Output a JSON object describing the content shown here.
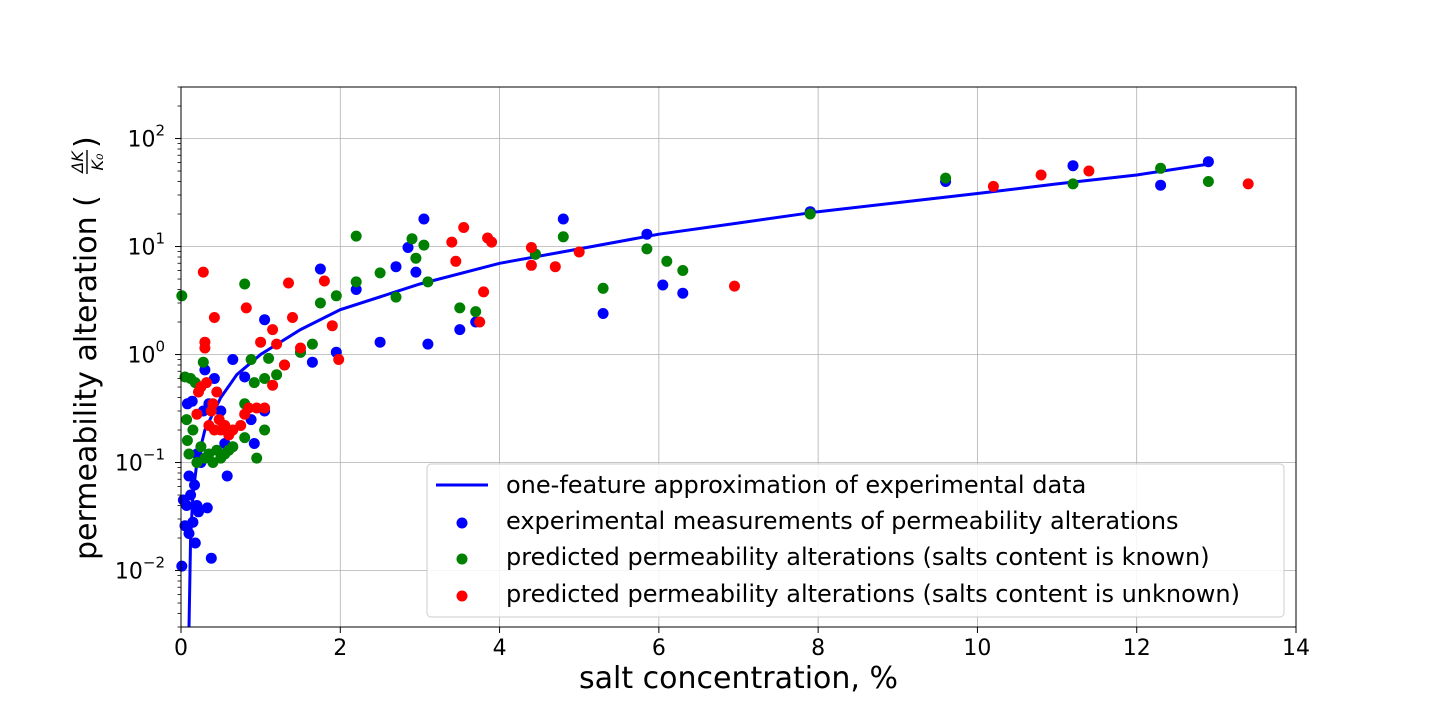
{
  "chart_data": {
    "type": "scatter",
    "title": "",
    "xlabel": "salt concentration, %",
    "ylabel": "permeability alteration (ΔK/K₀)",
    "ylabel_text": "permeability alteration (",
    "ylabel_frac_num": "ΔK",
    "ylabel_frac_den": "K₀",
    "ylabel_close": ")",
    "xscale": "linear",
    "yscale": "log",
    "xlim": [
      0,
      14
    ],
    "ylim": [
      0.003,
      300
    ],
    "grid": true,
    "legend_position": "lower-right",
    "x_ticks": [
      0,
      2,
      4,
      6,
      8,
      10,
      12,
      14
    ],
    "x_tick_labels": [
      "0",
      "2",
      "4",
      "6",
      "8",
      "10",
      "12",
      "14"
    ],
    "y_ticks": [
      0.01,
      0.1,
      1,
      10,
      100
    ],
    "y_tick_labels": [
      {
        "base": "10",
        "exp": "−2"
      },
      {
        "base": "10",
        "exp": "−1"
      },
      {
        "base": "10",
        "exp": "0"
      },
      {
        "base": "10",
        "exp": "1"
      },
      {
        "base": "10",
        "exp": "2"
      }
    ],
    "fit": {
      "name": "one-feature approximation of experimental data",
      "color": "#0000ff",
      "points": [
        [
          0.1,
          0.003
        ],
        [
          0.12,
          0.02
        ],
        [
          0.15,
          0.05
        ],
        [
          0.2,
          0.1
        ],
        [
          0.3,
          0.2
        ],
        [
          0.5,
          0.4
        ],
        [
          0.7,
          0.65
        ],
        [
          1.0,
          1.0
        ],
        [
          1.5,
          1.7
        ],
        [
          2.0,
          2.6
        ],
        [
          3.0,
          4.5
        ],
        [
          4.0,
          7.0
        ],
        [
          5.0,
          9.5
        ],
        [
          6.0,
          13.0
        ],
        [
          7.0,
          16.5
        ],
        [
          8.0,
          21.0
        ],
        [
          9.0,
          25.5
        ],
        [
          10.0,
          31.0
        ],
        [
          11.0,
          38.0
        ],
        [
          12.0,
          46.0
        ],
        [
          12.9,
          58.0
        ]
      ]
    },
    "series": [
      {
        "name": "experimental measurements of permeability alterations",
        "color": "#0000ff",
        "points": [
          [
            0.01,
            0.011
          ],
          [
            0.03,
            0.045
          ],
          [
            0.05,
            0.026
          ],
          [
            0.07,
            0.04
          ],
          [
            0.08,
            0.35
          ],
          [
            0.1,
            0.075
          ],
          [
            0.1,
            0.022
          ],
          [
            0.12,
            0.05
          ],
          [
            0.14,
            0.37
          ],
          [
            0.15,
            0.028
          ],
          [
            0.17,
            0.062
          ],
          [
            0.18,
            0.018
          ],
          [
            0.2,
            0.04
          ],
          [
            0.2,
            0.12
          ],
          [
            0.22,
            0.035
          ],
          [
            0.25,
            0.1
          ],
          [
            0.28,
            0.3
          ],
          [
            0.3,
            0.72
          ],
          [
            0.33,
            0.038
          ],
          [
            0.35,
            0.35
          ],
          [
            0.38,
            0.013
          ],
          [
            0.42,
            0.6
          ],
          [
            0.5,
            0.3
          ],
          [
            0.55,
            0.15
          ],
          [
            0.58,
            0.075
          ],
          [
            0.65,
            0.9
          ],
          [
            0.8,
            0.62
          ],
          [
            0.88,
            0.25
          ],
          [
            0.92,
            0.15
          ],
          [
            1.05,
            0.3
          ],
          [
            1.05,
            2.1
          ],
          [
            1.5,
            1.05
          ],
          [
            1.65,
            0.85
          ],
          [
            1.75,
            6.2
          ],
          [
            1.95,
            1.05
          ],
          [
            2.2,
            4.0
          ],
          [
            2.5,
            1.3
          ],
          [
            2.7,
            6.5
          ],
          [
            2.85,
            9.8
          ],
          [
            2.95,
            5.8
          ],
          [
            3.05,
            18.0
          ],
          [
            3.1,
            1.25
          ],
          [
            3.5,
            1.7
          ],
          [
            3.7,
            2.0
          ],
          [
            4.45,
            8.5
          ],
          [
            4.8,
            18.0
          ],
          [
            5.3,
            2.4
          ],
          [
            5.85,
            13.0
          ],
          [
            6.05,
            4.4
          ],
          [
            6.3,
            3.7
          ],
          [
            7.9,
            21.0
          ],
          [
            9.6,
            40.0
          ],
          [
            11.2,
            56.0
          ],
          [
            12.3,
            37.0
          ],
          [
            12.9,
            61.0
          ]
        ]
      },
      {
        "name": "predicted permeability alterations (salts content is known)",
        "color": "#008000",
        "points": [
          [
            0.01,
            3.5
          ],
          [
            0.05,
            0.62
          ],
          [
            0.07,
            0.25
          ],
          [
            0.08,
            0.16
          ],
          [
            0.1,
            0.12
          ],
          [
            0.12,
            0.6
          ],
          [
            0.15,
            0.2
          ],
          [
            0.18,
            0.55
          ],
          [
            0.2,
            0.1
          ],
          [
            0.25,
            0.14
          ],
          [
            0.28,
            0.85
          ],
          [
            0.3,
            0.11
          ],
          [
            0.35,
            0.12
          ],
          [
            0.4,
            0.1
          ],
          [
            0.45,
            0.13
          ],
          [
            0.5,
            0.11
          ],
          [
            0.55,
            0.12
          ],
          [
            0.6,
            0.13
          ],
          [
            0.65,
            0.14
          ],
          [
            0.8,
            4.5
          ],
          [
            0.8,
            0.35
          ],
          [
            0.8,
            0.17
          ],
          [
            0.88,
            0.9
          ],
          [
            0.92,
            0.55
          ],
          [
            0.95,
            0.11
          ],
          [
            1.05,
            0.2
          ],
          [
            1.05,
            0.6
          ],
          [
            1.1,
            0.92
          ],
          [
            1.2,
            0.65
          ],
          [
            1.3,
            0.8
          ],
          [
            1.5,
            1.05
          ],
          [
            1.65,
            1.25
          ],
          [
            1.75,
            3.0
          ],
          [
            1.95,
            3.5
          ],
          [
            2.2,
            12.5
          ],
          [
            2.2,
            4.7
          ],
          [
            2.5,
            5.7
          ],
          [
            2.7,
            3.4
          ],
          [
            2.9,
            11.8
          ],
          [
            2.95,
            7.8
          ],
          [
            3.05,
            10.3
          ],
          [
            3.1,
            4.7
          ],
          [
            3.5,
            2.7
          ],
          [
            3.7,
            2.5
          ],
          [
            4.45,
            8.5
          ],
          [
            4.8,
            12.3
          ],
          [
            5.3,
            4.1
          ],
          [
            5.85,
            9.5
          ],
          [
            6.1,
            7.3
          ],
          [
            6.3,
            6.0
          ],
          [
            7.9,
            20.0
          ],
          [
            9.6,
            43.0
          ],
          [
            11.2,
            38.0
          ],
          [
            12.3,
            53.0
          ],
          [
            12.9,
            40.0
          ]
        ]
      },
      {
        "name": "predicted permeability alterations (salts content is unknown)",
        "color": "#ff0000",
        "points": [
          [
            0.2,
            0.28
          ],
          [
            0.22,
            0.45
          ],
          [
            0.25,
            0.5
          ],
          [
            0.28,
            5.8
          ],
          [
            0.3,
            1.3
          ],
          [
            0.3,
            1.15
          ],
          [
            0.32,
            0.55
          ],
          [
            0.35,
            0.22
          ],
          [
            0.38,
            0.3
          ],
          [
            0.4,
            0.35
          ],
          [
            0.42,
            2.2
          ],
          [
            0.42,
            0.2
          ],
          [
            0.45,
            0.45
          ],
          [
            0.48,
            0.25
          ],
          [
            0.5,
            0.2
          ],
          [
            0.55,
            0.22
          ],
          [
            0.6,
            0.18
          ],
          [
            0.65,
            0.2
          ],
          [
            0.75,
            0.22
          ],
          [
            0.8,
            0.28
          ],
          [
            0.82,
            2.7
          ],
          [
            0.85,
            0.32
          ],
          [
            0.95,
            0.32
          ],
          [
            1.0,
            1.3
          ],
          [
            1.05,
            0.32
          ],
          [
            1.15,
            1.7
          ],
          [
            1.15,
            0.52
          ],
          [
            1.2,
            1.25
          ],
          [
            1.3,
            0.8
          ],
          [
            1.35,
            4.6
          ],
          [
            1.4,
            2.2
          ],
          [
            1.5,
            1.15
          ],
          [
            1.8,
            4.8
          ],
          [
            1.9,
            1.85
          ],
          [
            1.98,
            0.9
          ],
          [
            3.4,
            11.0
          ],
          [
            3.45,
            7.3
          ],
          [
            3.55,
            15.0
          ],
          [
            3.75,
            2.0
          ],
          [
            3.8,
            3.8
          ],
          [
            3.85,
            12.0
          ],
          [
            3.9,
            11.0
          ],
          [
            4.4,
            9.8
          ],
          [
            4.4,
            6.7
          ],
          [
            4.7,
            6.5
          ],
          [
            5.0,
            8.9
          ],
          [
            6.95,
            4.3
          ],
          [
            10.2,
            36.0
          ],
          [
            10.8,
            46.0
          ],
          [
            11.4,
            50.0
          ],
          [
            13.4,
            38.0
          ]
        ]
      }
    ]
  }
}
